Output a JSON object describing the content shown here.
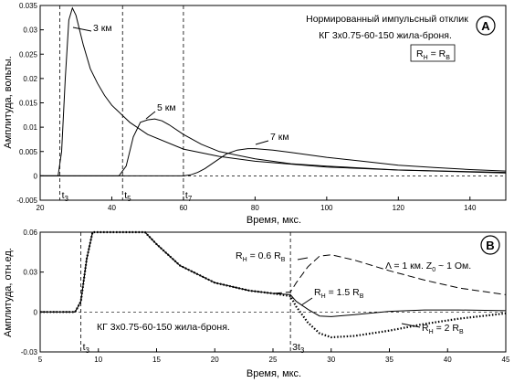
{
  "chart_data": [
    {
      "panel": "A",
      "type": "line",
      "title": "Нормированный импульсный отклик",
      "subtitle": "КГ 3х0.75-60-150 жила-броня.",
      "condition": "R = R",
      "condition_sub": [
        "Н",
        "В"
      ],
      "xlabel": "Время, мкс.",
      "ylabel": "Амплитуда, вольты.",
      "xlim": [
        20,
        150
      ],
      "ylim": [
        -0.005,
        0.035
      ],
      "xticks": [
        20,
        40,
        60,
        80,
        100,
        120,
        140
      ],
      "yticks": [
        -0.005,
        0,
        0.005,
        0.01,
        0.015,
        0.02,
        0.025,
        0.03,
        0.035
      ],
      "ytick_labels": [
        "-0.005",
        "0",
        "0.005",
        "0.01",
        "0.015",
        "0.02",
        "0.025",
        "0.03",
        "0.035"
      ],
      "vlines": [
        {
          "x": 25.5,
          "label": "t",
          "sub": "3"
        },
        {
          "x": 43,
          "label": "t",
          "sub": "5"
        },
        {
          "x": 60,
          "label": "t",
          "sub": "7"
        }
      ],
      "series": [
        {
          "name": "3 км",
          "x": [
            20,
            25,
            26,
            27,
            28,
            29,
            30,
            32,
            34,
            36,
            38,
            40,
            45,
            50,
            60,
            70,
            80,
            100,
            120,
            150
          ],
          "y": [
            0,
            0,
            0.005,
            0.02,
            0.032,
            0.0345,
            0.033,
            0.027,
            0.022,
            0.019,
            0.0165,
            0.0145,
            0.011,
            0.0085,
            0.0055,
            0.004,
            0.003,
            0.0018,
            0.0012,
            0.0006
          ]
        },
        {
          "name": "5 км",
          "x": [
            20,
            42,
            44,
            46,
            48,
            50,
            52,
            54,
            56,
            60,
            65,
            70,
            80,
            90,
            100,
            120,
            150
          ],
          "y": [
            0,
            0,
            0.002,
            0.008,
            0.011,
            0.0115,
            0.0117,
            0.0113,
            0.0105,
            0.0085,
            0.0065,
            0.005,
            0.0035,
            0.0025,
            0.002,
            0.0012,
            0.0007
          ]
        },
        {
          "name": "7 км",
          "x": [
            20,
            60,
            62,
            64,
            66,
            68,
            70,
            72,
            75,
            78,
            80,
            85,
            90,
            100,
            110,
            120,
            130,
            140,
            150
          ],
          "y": [
            0,
            0,
            0.0002,
            0.0007,
            0.0015,
            0.0025,
            0.0035,
            0.0045,
            0.0053,
            0.0056,
            0.0056,
            0.0053,
            0.0048,
            0.0038,
            0.003,
            0.0022,
            0.0017,
            0.0013,
            0.001
          ]
        }
      ],
      "curve_labels": [
        "3 км",
        "5 км",
        "7 км"
      ],
      "badge": "A"
    },
    {
      "panel": "B",
      "type": "line",
      "xlabel": "Время, мкс.",
      "ylabel": "Амплитуда, отн.ед.",
      "xlim": [
        5,
        45
      ],
      "ylim": [
        -0.03,
        0.06
      ],
      "xticks": [
        5,
        10,
        15,
        20,
        25,
        30,
        35,
        40,
        45
      ],
      "yticks": [
        -0.03,
        0,
        0.03,
        0.06
      ],
      "ytick_labels": [
        "-0.03",
        "0",
        "0.03",
        "0.06"
      ],
      "vlines": [
        {
          "x": 8.5,
          "label": "t",
          "sub": "3"
        },
        {
          "x": 26.5,
          "label": "3t",
          "sub": "3"
        }
      ],
      "cable_label": "КГ 3х0.75-60-150 жила-броня.",
      "params_label": "Λ = 1 км.  Z",
      "params_sub": "0",
      "params_tail": " ~ 1 Ом.",
      "series": [
        {
          "name": "RН = 0.6 RВ",
          "style": "dashed",
          "x": [
            5,
            8,
            8.5,
            9,
            9.5,
            14,
            15,
            17,
            20,
            23,
            25,
            26.5,
            27,
            28,
            29,
            30,
            32,
            35,
            38,
            41,
            45
          ],
          "y": [
            0,
            0,
            0.008,
            0.04,
            0.07,
            0.065,
            0.051,
            0.035,
            0.022,
            0.016,
            0.014,
            0.015,
            0.022,
            0.034,
            0.042,
            0.043,
            0.039,
            0.031,
            0.024,
            0.018,
            0.013
          ]
        },
        {
          "name": "RН = 1.5 RВ",
          "style": "solid",
          "x": [
            5,
            8,
            8.5,
            9,
            9.5,
            14,
            15,
            17,
            20,
            23,
            25,
            26.5,
            27,
            28,
            29,
            30,
            32,
            35,
            38,
            41,
            45
          ],
          "y": [
            0,
            0,
            0.008,
            0.04,
            0.07,
            0.065,
            0.051,
            0.035,
            0.022,
            0.016,
            0.014,
            0.013,
            0.008,
            0.002,
            -0.003,
            -0.0035,
            -0.002,
            0.0005,
            0.0015,
            0.0015,
            0.001
          ]
        },
        {
          "name": "RН = 2 RВ",
          "style": "dotted",
          "x": [
            5,
            8,
            8.5,
            9,
            9.5,
            14,
            15,
            17,
            20,
            23,
            25,
            26.5,
            27,
            28,
            29,
            30,
            32,
            35,
            38,
            41,
            45
          ],
          "y": [
            0,
            0,
            0.008,
            0.04,
            0.07,
            0.065,
            0.051,
            0.035,
            0.022,
            0.016,
            0.014,
            0.012,
            0.004,
            -0.008,
            -0.016,
            -0.019,
            -0.018,
            -0.014,
            -0.009,
            -0.005,
            -0.001
          ]
        }
      ],
      "curve_labels": [
        {
          "a": "R",
          "as": "Н",
          "b": " = 0.6 R",
          "bs": "В"
        },
        {
          "a": "R",
          "as": "Н",
          "b": " = 1.5 R",
          "bs": "В"
        },
        {
          "a": "R",
          "as": "Н",
          "b": " = 2 R",
          "bs": "В"
        }
      ],
      "badge": "B"
    }
  ]
}
